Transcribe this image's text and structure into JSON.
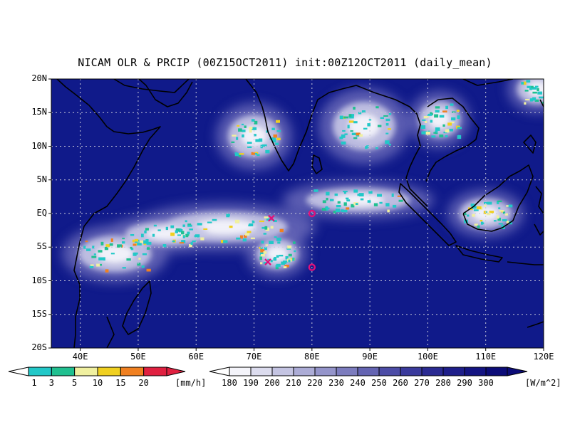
{
  "title": "NICAM OLR & PRCIP (00Z15OCT2011) init:00Z12OCT2011 (daily_mean)",
  "map": {
    "lon_range": [
      35,
      120
    ],
    "lat_range": [
      -20,
      20
    ],
    "lat_labels": [
      "20N",
      "15N",
      "10N",
      "5N",
      "EQ",
      "5S",
      "10S",
      "15S",
      "20S"
    ],
    "lon_labels": [
      "40E",
      "50E",
      "60E",
      "70E",
      "80E",
      "90E",
      "100E",
      "110E",
      "120E"
    ],
    "background_color": "#101a8a"
  },
  "precip_colorbar": {
    "labels": [
      "1",
      "3",
      "5",
      "10",
      "15",
      "20"
    ],
    "unit": "[mm/h]",
    "colors": [
      "#22c8c8",
      "#20c090",
      "#f0f0a0",
      "#f0d020",
      "#f08020",
      "#e02040"
    ]
  },
  "olr_colorbar": {
    "labels": [
      "180",
      "190",
      "200",
      "210",
      "220",
      "230",
      "240",
      "250",
      "260",
      "270",
      "280",
      "290",
      "300"
    ],
    "unit": "[W/m^2]",
    "colors": [
      "#f4f4fa",
      "#dcdcee",
      "#c4c4e2",
      "#acacd6",
      "#9494ca",
      "#7c7cbe",
      "#6464b2",
      "#4c4ca6",
      "#3a3a9c",
      "#2a2a92",
      "#1e1e8a",
      "#141482",
      "#0c0c78"
    ]
  },
  "markers": [
    {
      "type": "cross",
      "lon": 73,
      "lat": -0.7,
      "color": "#e0107a"
    },
    {
      "type": "circle",
      "lon": 80,
      "lat": 0,
      "color": "#e0107a"
    },
    {
      "type": "cross",
      "lon": 72.4,
      "lat": -7.2,
      "color": "#e0107a"
    },
    {
      "type": "circle",
      "lon": 80,
      "lat": -8,
      "color": "#e0107a"
    }
  ],
  "cloud_clusters": [
    {
      "lon": 70,
      "lat": 11.5,
      "rx": 5,
      "ry": 3.5
    },
    {
      "lon": 89,
      "lat": 13,
      "rx": 6,
      "ry": 4
    },
    {
      "lon": 102,
      "lat": 14,
      "rx": 4,
      "ry": 3
    },
    {
      "lon": 119,
      "lat": 18.5,
      "rx": 4,
      "ry": 2.5
    },
    {
      "lon": 65,
      "lat": -2,
      "rx": 12,
      "ry": 2.5
    },
    {
      "lon": 55,
      "lat": -3,
      "rx": 8,
      "ry": 2
    },
    {
      "lon": 88,
      "lat": 2,
      "rx": 10,
      "ry": 2
    },
    {
      "lon": 110,
      "lat": 0,
      "rx": 5,
      "ry": 2.5
    },
    {
      "lon": 74,
      "lat": -6,
      "rx": 4,
      "ry": 2.5
    },
    {
      "lon": 46,
      "lat": -6,
      "rx": 7,
      "ry": 3
    }
  ]
}
